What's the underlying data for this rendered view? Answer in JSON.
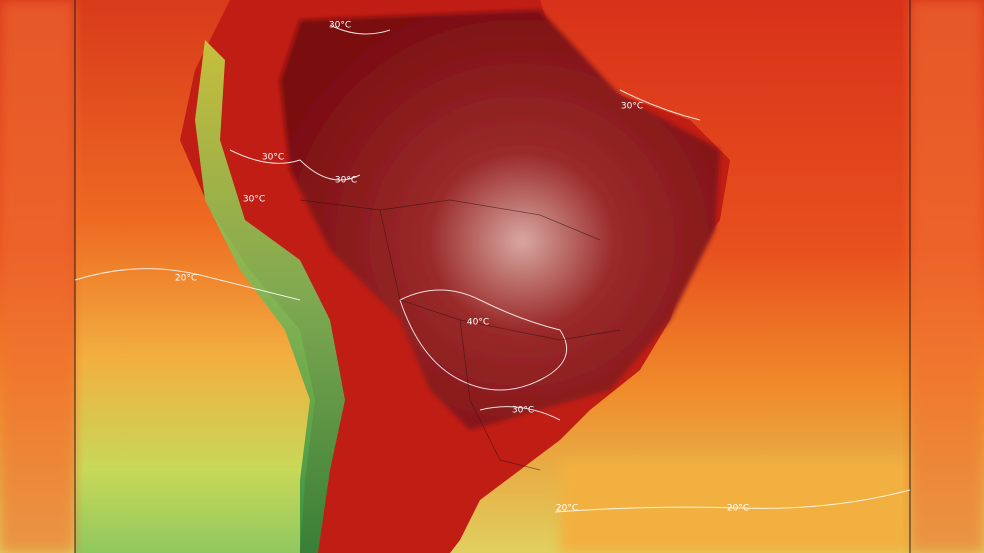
{
  "contour_labels": [
    {
      "text": "30°C"
    },
    {
      "text": "30°C"
    },
    {
      "text": "30°C"
    },
    {
      "text": "30°C"
    },
    {
      "text": "30°C"
    },
    {
      "text": "30°C"
    },
    {
      "text": "40°C"
    },
    {
      "text": "20°C"
    },
    {
      "text": "20°C"
    },
    {
      "text": "20°C"
    }
  ]
}
